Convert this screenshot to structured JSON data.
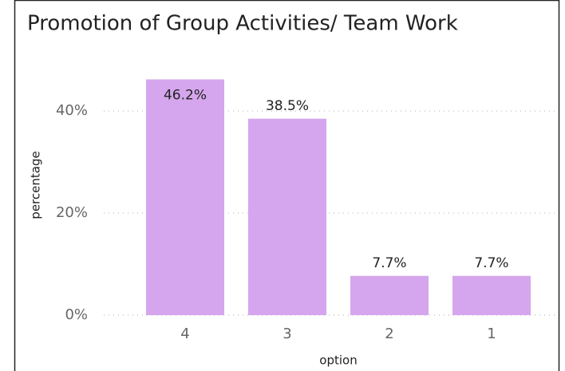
{
  "chart_data": {
    "type": "bar",
    "title": "Promotion of Group Activities/ Team Work",
    "categories": [
      "4",
      "3",
      "2",
      "1"
    ],
    "values": [
      46.2,
      38.5,
      7.7,
      7.7
    ],
    "value_labels": [
      "46.2%",
      "38.5%",
      "7.7%",
      "7.7%"
    ],
    "color": "#d5a6ed",
    "xlabel": "option",
    "ylabel": "percentage",
    "ylim": [
      0,
      48
    ],
    "yticks": [
      {
        "value": 0,
        "label": "0%"
      },
      {
        "value": 20,
        "label": "20%"
      },
      {
        "value": 40,
        "label": "40%"
      }
    ],
    "grid": true
  }
}
